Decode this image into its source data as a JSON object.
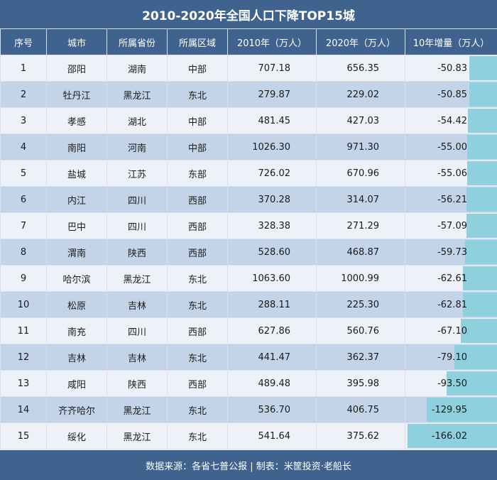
{
  "title": "2010-2020年全国人口下降TOP15城",
  "footer": "数据来源：各省七普公报 | 制表：米筐投资·老船长",
  "headers": [
    "序号",
    "城市",
    "所属省份",
    "所属区域",
    "2010年（万人）",
    "2020年（万人）",
    "10年增量（万人）"
  ],
  "colors": {
    "header": "#3f628f",
    "row_odd": "#eef2f8",
    "row_even": "#c3d3e8",
    "bar": "#8fd0df"
  },
  "chart_data": {
    "type": "table",
    "title": "2010-2020年全国人口下降TOP15城",
    "columns": [
      "序号",
      "城市",
      "所属省份",
      "所属区域",
      "2010年（万人）",
      "2020年（万人）",
      "10年增量（万人）"
    ],
    "bar_column": "10年增量（万人）",
    "rows": [
      {
        "rank": "1",
        "city": "邵阳",
        "province": "湖南",
        "region": "中部",
        "pop2010": "707.18",
        "pop2020": "656.35",
        "change": "-50.83",
        "change_value": -50.83
      },
      {
        "rank": "2",
        "city": "牡丹江",
        "province": "黑龙江",
        "region": "东北",
        "pop2010": "279.87",
        "pop2020": "229.02",
        "change": "-50.85",
        "change_value": -50.85
      },
      {
        "rank": "3",
        "city": "孝感",
        "province": "湖北",
        "region": "中部",
        "pop2010": "481.45",
        "pop2020": "427.03",
        "change": "-54.42",
        "change_value": -54.42
      },
      {
        "rank": "4",
        "city": "南阳",
        "province": "河南",
        "region": "中部",
        "pop2010": "1026.30",
        "pop2020": "971.30",
        "change": "-55.00",
        "change_value": -55.0
      },
      {
        "rank": "5",
        "city": "盐城",
        "province": "江苏",
        "region": "东部",
        "pop2010": "726.02",
        "pop2020": "670.96",
        "change": "-55.06",
        "change_value": -55.06
      },
      {
        "rank": "6",
        "city": "内江",
        "province": "四川",
        "region": "西部",
        "pop2010": "370.28",
        "pop2020": "314.07",
        "change": "-56.21",
        "change_value": -56.21
      },
      {
        "rank": "7",
        "city": "巴中",
        "province": "四川",
        "region": "西部",
        "pop2010": "328.38",
        "pop2020": "271.29",
        "change": "-57.09",
        "change_value": -57.09
      },
      {
        "rank": "8",
        "city": "渭南",
        "province": "陕西",
        "region": "西部",
        "pop2010": "528.60",
        "pop2020": "468.87",
        "change": "-59.73",
        "change_value": -59.73
      },
      {
        "rank": "9",
        "city": "哈尔滨",
        "province": "黑龙江",
        "region": "东北",
        "pop2010": "1063.60",
        "pop2020": "1000.99",
        "change": "-62.61",
        "change_value": -62.61
      },
      {
        "rank": "10",
        "city": "松原",
        "province": "吉林",
        "region": "东北",
        "pop2010": "288.11",
        "pop2020": "225.30",
        "change": "-62.81",
        "change_value": -62.81
      },
      {
        "rank": "11",
        "city": "南充",
        "province": "四川",
        "region": "西部",
        "pop2010": "627.86",
        "pop2020": "560.76",
        "change": "-67.10",
        "change_value": -67.1
      },
      {
        "rank": "12",
        "city": "吉林",
        "province": "吉林",
        "region": "东北",
        "pop2010": "441.47",
        "pop2020": "362.37",
        "change": "-79.10",
        "change_value": -79.1
      },
      {
        "rank": "13",
        "city": "咸阳",
        "province": "陕西",
        "region": "西部",
        "pop2010": "489.48",
        "pop2020": "395.98",
        "change": "-93.50",
        "change_value": -93.5
      },
      {
        "rank": "14",
        "city": "齐齐哈尔",
        "province": "黑龙江",
        "region": "东北",
        "pop2010": "536.70",
        "pop2020": "406.75",
        "change": "-129.95",
        "change_value": -129.95
      },
      {
        "rank": "15",
        "city": "绥化",
        "province": "黑龙江",
        "region": "东北",
        "pop2010": "541.64",
        "pop2020": "375.62",
        "change": "-166.02",
        "change_value": -166.02
      }
    ]
  }
}
